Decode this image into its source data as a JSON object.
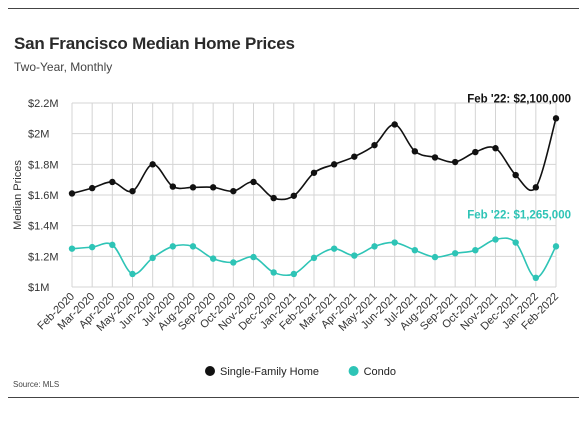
{
  "title": "San Francisco Median Home Prices",
  "subtitle": "Two-Year, Monthly",
  "source": "Source: MLS",
  "colors": {
    "sfh": "#111111",
    "condo": "#2ec4b6",
    "grid": "#d4d4d4"
  },
  "chart_data": {
    "type": "line",
    "title": "San Francisco Median Home Prices",
    "subtitle": "Two-Year, Monthly",
    "ylabel": "Median Prices",
    "xlabel": "",
    "ylim": [
      1000000,
      2200000
    ],
    "yticks": [
      1000000,
      1200000,
      1400000,
      1600000,
      1800000,
      2000000,
      2200000
    ],
    "ytick_labels": [
      "$1M",
      "$1.2M",
      "$1.4M",
      "$1.6M",
      "$1.8M",
      "$2M",
      "$2.2M"
    ],
    "grid": true,
    "legend": "bottom-center",
    "categories": [
      "Feb-2020",
      "Mar-2020",
      "Apr-2020",
      "May-2020",
      "Jun-2020",
      "Jul-2020",
      "Aug-2020",
      "Sep-2020",
      "Oct-2020",
      "Nov-2020",
      "Dec-2020",
      "Jan-2021",
      "Feb-2021",
      "Mar-2021",
      "Apr-2021",
      "May-2021",
      "Jun-2021",
      "Jul-2021",
      "Aug-2021",
      "Sep-2021",
      "Oct-2021",
      "Nov-2021",
      "Dec-2021",
      "Jan-2022",
      "Feb-2022"
    ],
    "series": [
      {
        "name": "Single-Family Home",
        "values": [
          1610000,
          1645000,
          1685000,
          1625000,
          1800000,
          1655000,
          1650000,
          1650000,
          1625000,
          1685000,
          1580000,
          1595000,
          1745000,
          1800000,
          1850000,
          1925000,
          2060000,
          1885000,
          1845000,
          1815000,
          1880000,
          1905000,
          1730000,
          1650000,
          2100000
        ]
      },
      {
        "name": "Condo",
        "values": [
          1250000,
          1260000,
          1275000,
          1085000,
          1190000,
          1265000,
          1265000,
          1185000,
          1160000,
          1195000,
          1095000,
          1085000,
          1190000,
          1250000,
          1205000,
          1265000,
          1290000,
          1240000,
          1195000,
          1220000,
          1240000,
          1310000,
          1290000,
          1060000,
          1265000
        ]
      }
    ],
    "annotations": [
      {
        "series": "Single-Family Home",
        "text": "Feb '22: $2,100,000"
      },
      {
        "series": "Condo",
        "text": "Feb '22: $1,265,000"
      }
    ]
  }
}
